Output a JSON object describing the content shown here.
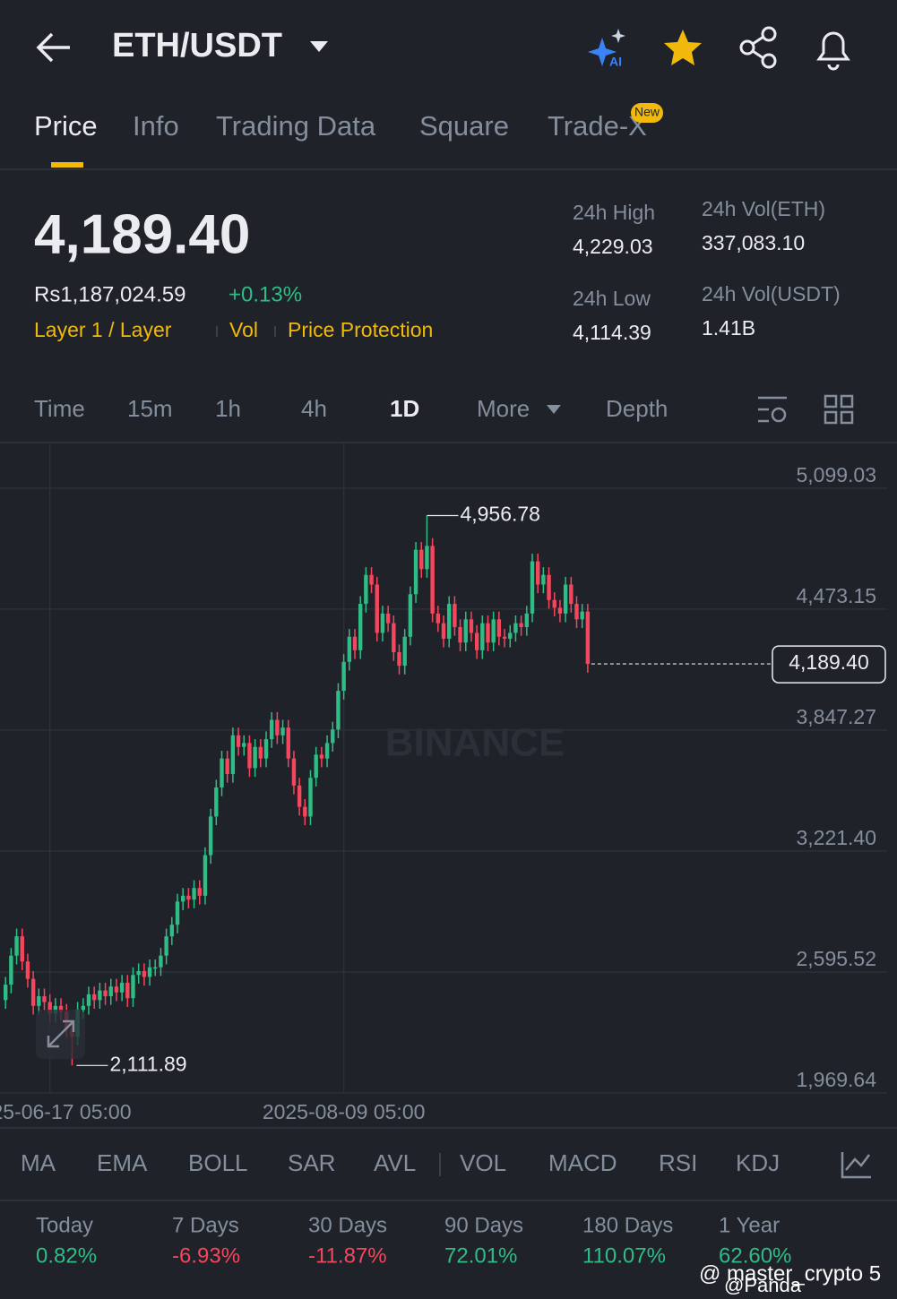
{
  "header": {
    "pair": "ETH/USDT"
  },
  "tabs": {
    "items": [
      "Price",
      "Info",
      "Trading Data",
      "Square",
      "Trade-X"
    ],
    "badge": "New"
  },
  "ticker": {
    "price": "4,189.40",
    "fiat": "Rs1,187,024.59",
    "change": "+0.13%",
    "tags": [
      "Layer 1 / Layer",
      "Vol",
      "Price Protection"
    ],
    "stats": [
      {
        "label": "24h High",
        "value": "4,229.03"
      },
      {
        "label": "24h Vol(ETH)",
        "value": "337,083.10"
      },
      {
        "label": "24h Low",
        "value": "4,114.39"
      },
      {
        "label": "24h Vol(USDT)",
        "value": "1.41B"
      }
    ]
  },
  "intervals": [
    "Time",
    "15m",
    "1h",
    "4h",
    "1D",
    "More",
    "Depth"
  ],
  "chart_data": {
    "type": "candlestick",
    "watermark": "BINANCE",
    "up_color": "#2ebd85",
    "down_color": "#f6465d",
    "grid": true,
    "open": [
      2450,
      2530,
      2680,
      2780,
      2650,
      2560,
      2420,
      2470,
      2440,
      2380,
      2420,
      2390,
      2300,
      2260,
      2400,
      2420,
      2480,
      2450,
      2500,
      2470,
      2520,
      2490,
      2540,
      2460,
      2580,
      2600,
      2570,
      2620,
      2620,
      2680,
      2780,
      2840,
      2960,
      2990,
      2970,
      3030,
      2990,
      3200,
      3400,
      3550,
      3700,
      3620,
      3820,
      3760,
      3780,
      3650,
      3760,
      3700,
      3800,
      3900,
      3820,
      3860,
      3700,
      3560,
      3450,
      3400,
      3600,
      3720,
      3700,
      3780,
      3850,
      4050,
      4200,
      4330,
      4260,
      4500,
      4650,
      4600,
      4350,
      4450,
      4400,
      4250,
      4180,
      4330,
      4550,
      4780,
      4680,
      4800,
      4450,
      4400,
      4320,
      4500,
      4380,
      4300,
      4420,
      4350,
      4260,
      4400,
      4300,
      4420,
      4330,
      4320,
      4350,
      4400,
      4380,
      4450,
      4720,
      4600,
      4650,
      4520,
      4480,
      4450,
      4600,
      4500,
      4420,
      4460
    ],
    "high": [
      2570,
      2720,
      2820,
      2820,
      2690,
      2600,
      2510,
      2510,
      2480,
      2460,
      2460,
      2430,
      2340,
      2440,
      2460,
      2520,
      2520,
      2540,
      2540,
      2560,
      2560,
      2580,
      2580,
      2620,
      2640,
      2640,
      2660,
      2660,
      2720,
      2820,
      2880,
      3000,
      3030,
      3030,
      3070,
      3070,
      3240,
      3440,
      3590,
      3740,
      3740,
      3860,
      3860,
      3820,
      3820,
      3800,
      3800,
      3840,
      3940,
      3940,
      3900,
      3900,
      3740,
      3600,
      3490,
      3640,
      3760,
      3760,
      3820,
      3890,
      4090,
      4240,
      4370,
      4370,
      4540,
      4690,
      4690,
      4640,
      4490,
      4490,
      4440,
      4290,
      4370,
      4590,
      4820,
      4820,
      4956.78,
      4840,
      4490,
      4440,
      4540,
      4540,
      4420,
      4460,
      4460,
      4390,
      4440,
      4440,
      4460,
      4460,
      4370,
      4390,
      4440,
      4440,
      4490,
      4760,
      4760,
      4690,
      4690,
      4560,
      4520,
      4640,
      4640,
      4540,
      4500,
      4500
    ],
    "low": [
      2405,
      2485,
      2635,
      2605,
      2515,
      2375,
      2375,
      2395,
      2335,
      2335,
      2345,
      2255,
      2111.89,
      2215,
      2355,
      2375,
      2405,
      2405,
      2425,
      2425,
      2445,
      2445,
      2415,
      2415,
      2535,
      2525,
      2525,
      2575,
      2575,
      2635,
      2735,
      2795,
      2915,
      2925,
      2925,
      2945,
      2945,
      3155,
      3355,
      3505,
      3575,
      3575,
      3715,
      3715,
      3605,
      3605,
      3655,
      3655,
      3755,
      3775,
      3775,
      3655,
      3515,
      3405,
      3355,
      3355,
      3555,
      3655,
      3655,
      3735,
      3805,
      4005,
      4155,
      4215,
      4215,
      4455,
      4555,
      4305,
      4305,
      4355,
      4205,
      4135,
      4135,
      4285,
      4505,
      4635,
      4635,
      4405,
      4355,
      4275,
      4275,
      4335,
      4255,
      4255,
      4305,
      4215,
      4215,
      4255,
      4255,
      4285,
      4275,
      4275,
      4305,
      4335,
      4335,
      4405,
      4555,
      4555,
      4475,
      4435,
      4405,
      4405,
      4455,
      4375,
      4375,
      4144
    ],
    "close": [
      2530,
      2680,
      2780,
      2650,
      2560,
      2420,
      2470,
      2440,
      2380,
      2420,
      2390,
      2300,
      2260,
      2400,
      2420,
      2480,
      2450,
      2500,
      2470,
      2520,
      2490,
      2540,
      2460,
      2580,
      2600,
      2570,
      2620,
      2620,
      2680,
      2780,
      2840,
      2960,
      2990,
      2970,
      3030,
      2990,
      3200,
      3400,
      3550,
      3700,
      3620,
      3820,
      3760,
      3780,
      3650,
      3760,
      3700,
      3800,
      3900,
      3820,
      3860,
      3700,
      3560,
      3450,
      3400,
      3600,
      3720,
      3700,
      3780,
      3850,
      4050,
      4200,
      4330,
      4260,
      4500,
      4650,
      4600,
      4350,
      4450,
      4400,
      4250,
      4180,
      4330,
      4550,
      4780,
      4680,
      4800,
      4450,
      4400,
      4320,
      4500,
      4380,
      4300,
      4420,
      4350,
      4260,
      4400,
      4300,
      4420,
      4330,
      4320,
      4350,
      4400,
      4380,
      4450,
      4720,
      4600,
      4650,
      4520,
      4480,
      4450,
      4600,
      4500,
      4420,
      4460,
      4189.4
    ],
    "ylim": [
      1969.64,
      5330
    ],
    "yticks": [
      {
        "value": 1969.64,
        "label": "1,969.64"
      },
      {
        "value": 2595.52,
        "label": "2,595.52"
      },
      {
        "value": 3221.4,
        "label": "3,221.40"
      },
      {
        "value": 3847.27,
        "label": "3,847.27"
      },
      {
        "value": 4473.15,
        "label": "4,473.15"
      },
      {
        "value": 5099.03,
        "label": "5,099.03"
      }
    ],
    "xlim": [
      -1,
      159
    ],
    "xticks": [
      {
        "value": 8,
        "label": "2025-06-17 05:00"
      },
      {
        "value": 61,
        "label": "2025-08-09 05:00"
      }
    ],
    "high_label": "4,956.78",
    "low_label": "2,111.89",
    "last_label": "4,189.40"
  },
  "indicators": [
    "MA",
    "EMA",
    "BOLL",
    "SAR",
    "AVL",
    "VOL",
    "MACD",
    "RSI",
    "KDJ"
  ],
  "performance": [
    {
      "label": "Today",
      "value": "0.82%"
    },
    {
      "label": "7 Days",
      "value": "-6.93%"
    },
    {
      "label": "30 Days",
      "value": "-11.87%"
    },
    {
      "label": "90 Days",
      "value": "72.01%"
    },
    {
      "label": "180 Days",
      "value": "110.07%"
    },
    {
      "label": "1 Year",
      "value": "62.60%"
    }
  ],
  "watermarks": [
    "@ master_crypto 5",
    "@Panda"
  ]
}
